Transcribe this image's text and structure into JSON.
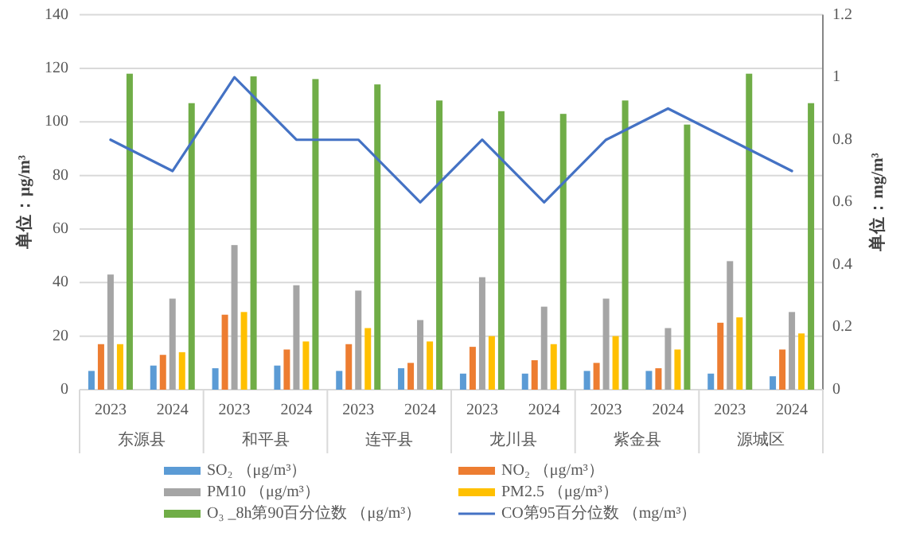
{
  "chart_data": {
    "type": "bar",
    "categories": [
      "2023",
      "2024",
      "2023",
      "2024",
      "2023",
      "2024",
      "2023",
      "2024",
      "2023",
      "2024",
      "2023",
      "2024"
    ],
    "annotations": [
      "东源县",
      "和平县",
      "连平县",
      "龙川县",
      "紫金县",
      "源城区"
    ],
    "ylabel": "单位：μg/m³",
    "y2label": "单位：mg/m³",
    "ylim": [
      0,
      140
    ],
    "yticks": [
      0,
      20,
      40,
      60,
      80,
      100,
      120,
      140
    ],
    "y2lim": [
      0,
      1.2
    ],
    "y2ticks": [
      0,
      0.2,
      0.4,
      0.6,
      0.8,
      1,
      1.2
    ],
    "grid": "y",
    "legend": "bottom",
    "series": [
      {
        "name": "SO₂ （μg/m³）",
        "color": "#5b9bd5",
        "values": [
          7,
          9,
          8,
          9,
          7,
          8,
          6,
          6,
          7,
          7,
          6,
          5
        ]
      },
      {
        "name": "NO₂ （μg/m³）",
        "color": "#ed7d31",
        "values": [
          17,
          13,
          28,
          15,
          17,
          10,
          16,
          11,
          10,
          8,
          25,
          15
        ]
      },
      {
        "name": "PM10 （μg/m³）",
        "color": "#a5a5a5",
        "values": [
          43,
          34,
          54,
          39,
          37,
          26,
          42,
          31,
          34,
          23,
          48,
          29
        ]
      },
      {
        "name": "PM2.5 （μg/m³）",
        "color": "#ffc000",
        "values": [
          17,
          14,
          29,
          18,
          23,
          18,
          20,
          17,
          20,
          15,
          27,
          21
        ]
      },
      {
        "name": "O₃ _8h第90百分位数 （μg/m³）",
        "color": "#70ad47",
        "values": [
          118,
          107,
          117,
          116,
          114,
          108,
          104,
          103,
          108,
          99,
          118,
          107
        ]
      },
      {
        "name": "CO第95百分位数 （mg/m³）",
        "color": "#4472c4",
        "type": "line",
        "axis": "y2",
        "values": [
          0.8,
          0.7,
          1.0,
          0.8,
          0.8,
          0.6,
          0.8,
          0.6,
          0.8,
          0.9,
          0.8,
          0.7
        ]
      }
    ]
  }
}
